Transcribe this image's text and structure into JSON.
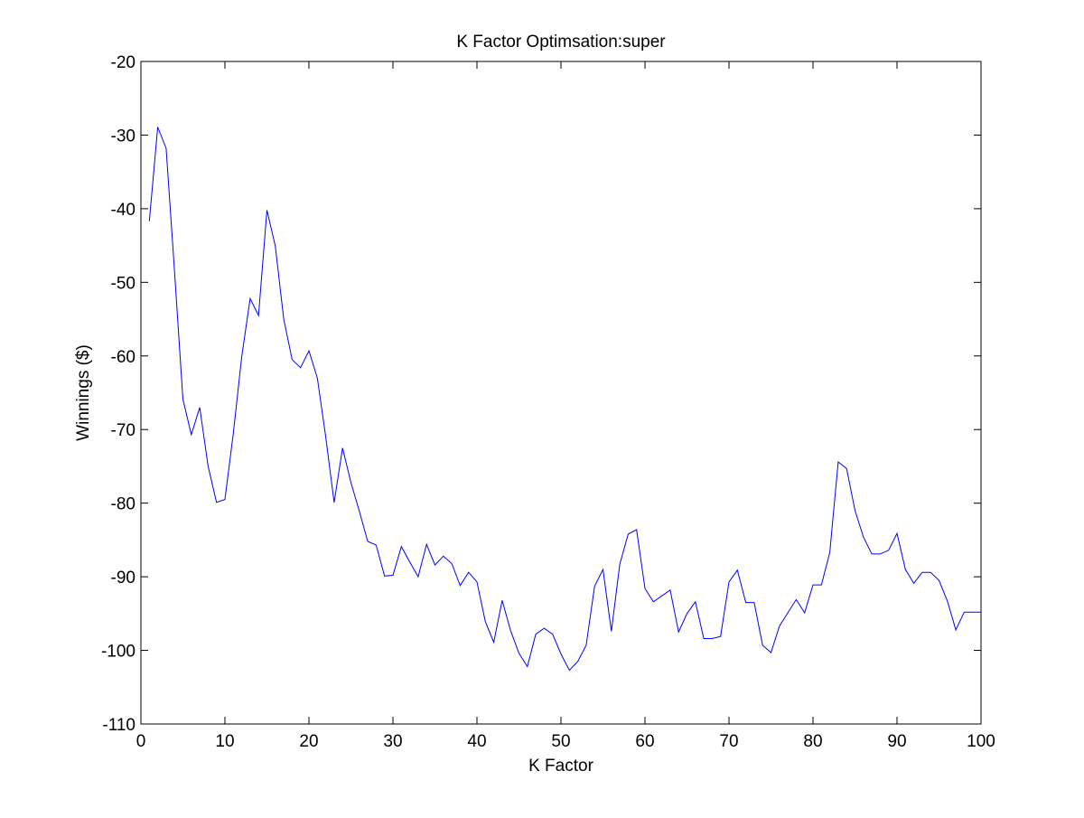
{
  "chart_data": {
    "type": "line",
    "title": "K Factor Optimsation:super",
    "xlabel": "K Factor",
    "ylabel": "Winnings ($)",
    "xlim": [
      0,
      100
    ],
    "ylim": [
      -110,
      -20
    ],
    "xticks": [
      0,
      10,
      20,
      30,
      40,
      50,
      60,
      70,
      80,
      90,
      100
    ],
    "yticks": [
      -110,
      -100,
      -90,
      -80,
      -70,
      -60,
      -50,
      -40,
      -30,
      -20
    ],
    "xtick_labels": [
      "0",
      "10",
      "20",
      "30",
      "40",
      "50",
      "60",
      "70",
      "80",
      "90",
      "100"
    ],
    "ytick_labels": [
      "-110",
      "-100",
      "-90",
      "-80",
      "-70",
      "-60",
      "-50",
      "-40",
      "-30",
      "-20"
    ],
    "grid": false,
    "legend": "none",
    "line_color": "#0000ff",
    "series": [
      {
        "x": [
          1,
          2,
          3,
          4,
          5,
          6,
          7,
          8,
          9,
          10,
          11,
          12,
          13,
          14,
          15,
          16,
          17,
          18,
          19,
          20,
          21,
          22,
          23,
          24,
          25,
          26,
          27,
          28,
          29,
          30,
          31,
          32,
          33,
          34,
          35,
          36,
          37,
          38,
          39,
          40,
          41,
          42,
          43,
          44,
          45,
          46,
          47,
          48,
          49,
          50,
          51,
          52,
          53,
          54,
          55,
          56,
          57,
          58,
          59,
          60,
          61,
          62,
          63,
          64,
          65,
          66,
          67,
          68,
          69,
          70,
          71,
          72,
          73,
          74,
          75,
          76,
          77,
          78,
          79,
          80,
          81,
          82,
          83,
          84,
          85,
          86,
          87,
          88,
          89,
          90,
          91,
          92,
          93,
          94,
          95,
          96,
          97,
          98,
          99,
          100
        ],
        "values": [
          -41.7,
          -28.9,
          -31.8,
          -48.5,
          -65.9,
          -70.7,
          -67.0,
          -75.0,
          -79.9,
          -79.5,
          -70.5,
          -60.1,
          -52.2,
          -54.5,
          -40.2,
          -45.1,
          -55.0,
          -60.5,
          -61.6,
          -59.3,
          -63.0,
          -71.0,
          -79.9,
          -72.5,
          -77.2,
          -81.1,
          -85.2,
          -85.7,
          -89.9,
          -89.8,
          -85.9,
          -88.0,
          -90.0,
          -85.6,
          -88.4,
          -87.2,
          -88.2,
          -91.2,
          -89.4,
          -90.7,
          -96.1,
          -98.9,
          -93.2,
          -97.3,
          -100.4,
          -102.2,
          -97.8,
          -97.0,
          -97.8,
          -100.5,
          -102.7,
          -101.5,
          -99.3,
          -91.3,
          -89.0,
          -97.4,
          -88.3,
          -84.2,
          -83.6,
          -91.6,
          -93.4,
          -92.6,
          -91.8,
          -97.5,
          -95.0,
          -93.4,
          -98.4,
          -98.4,
          -98.1,
          -90.7,
          -89.1,
          -93.5,
          -93.5,
          -99.3,
          -100.3,
          -96.7,
          -94.9,
          -93.1,
          -94.9,
          -91.1,
          -91.1,
          -86.7,
          -74.4,
          -75.3,
          -81.0,
          -84.6,
          -86.9,
          -86.9,
          -86.4,
          -84.1,
          -89.0,
          -90.9,
          -89.4,
          -89.4,
          -90.5,
          -93.3,
          -97.2,
          -94.8,
          -94.8,
          -94.8
        ]
      }
    ]
  }
}
